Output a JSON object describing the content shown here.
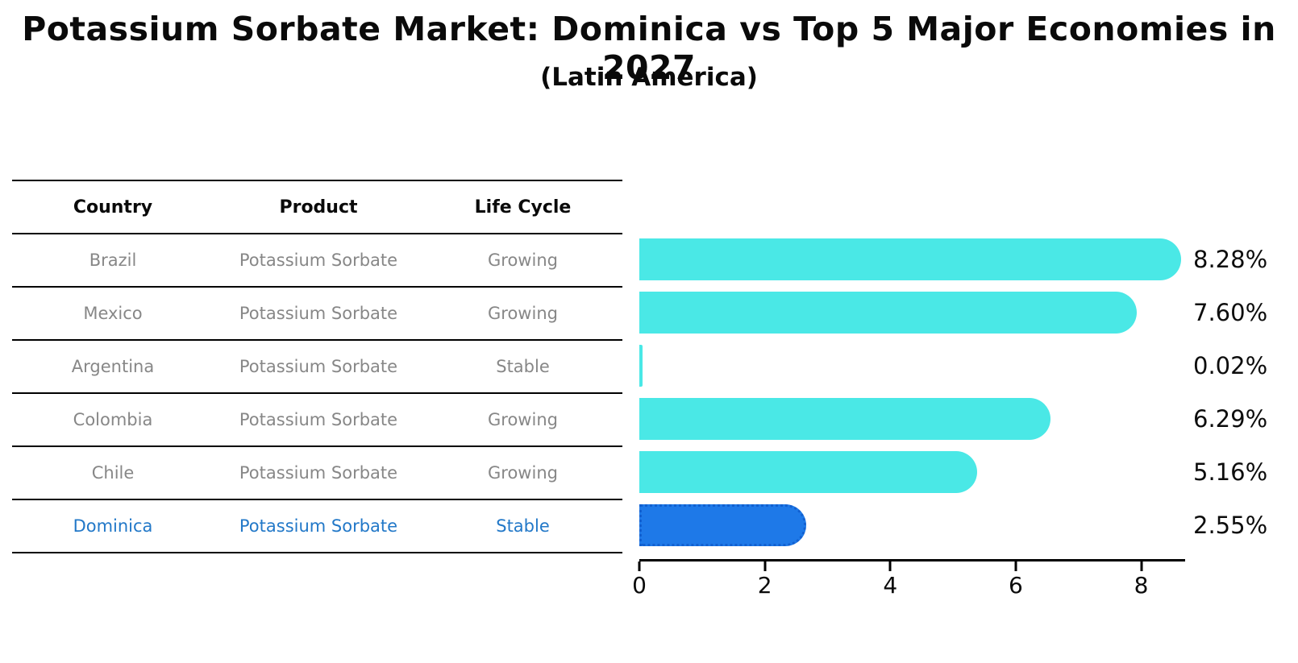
{
  "title": "Potassium Sorbate Market: Dominica vs Top 5 Major Economies in 2027",
  "subtitle": "(Latin America)",
  "table": {
    "headers": {
      "country": "Country",
      "product": "Product",
      "life_cycle": "Life Cycle"
    },
    "rows": [
      {
        "country": "Brazil",
        "product": "Potassium Sorbate",
        "life_cycle": "Growing",
        "highlighted": false
      },
      {
        "country": "Mexico",
        "product": "Potassium Sorbate",
        "life_cycle": "Growing",
        "highlighted": false
      },
      {
        "country": "Argentina",
        "product": "Potassium Sorbate",
        "life_cycle": "Stable",
        "highlighted": false
      },
      {
        "country": "Colombia",
        "product": "Potassium Sorbate",
        "life_cycle": "Growing",
        "highlighted": false
      },
      {
        "country": "Chile",
        "product": "Potassium Sorbate",
        "life_cycle": "Growing",
        "highlighted": false
      },
      {
        "country": "Dominica",
        "product": "Potassium Sorbate",
        "life_cycle": "Stable",
        "highlighted": true
      }
    ]
  },
  "chart_data": {
    "type": "bar",
    "orientation": "horizontal",
    "categories": [
      "Brazil",
      "Mexico",
      "Argentina",
      "Colombia",
      "Chile",
      "Dominica"
    ],
    "values": [
      8.28,
      7.6,
      0.02,
      6.29,
      5.16,
      2.55
    ],
    "bar_labels": [
      "8.28%",
      "7.60%",
      "0.02%",
      "6.29%",
      "5.16%",
      "2.55%"
    ],
    "highlight_index": 5,
    "x_ticks": [
      0,
      2,
      4,
      6,
      8
    ],
    "xlim": [
      0,
      8.7
    ],
    "grid": false,
    "legend": "none",
    "colors": {
      "bar": "#4ae8e6",
      "highlight_bar": "#1e79e8",
      "highlight_border": "#1260d0",
      "table_text": "#878787",
      "highlight_text": "#2278c8",
      "axis_text": "#0a0a0a"
    }
  }
}
